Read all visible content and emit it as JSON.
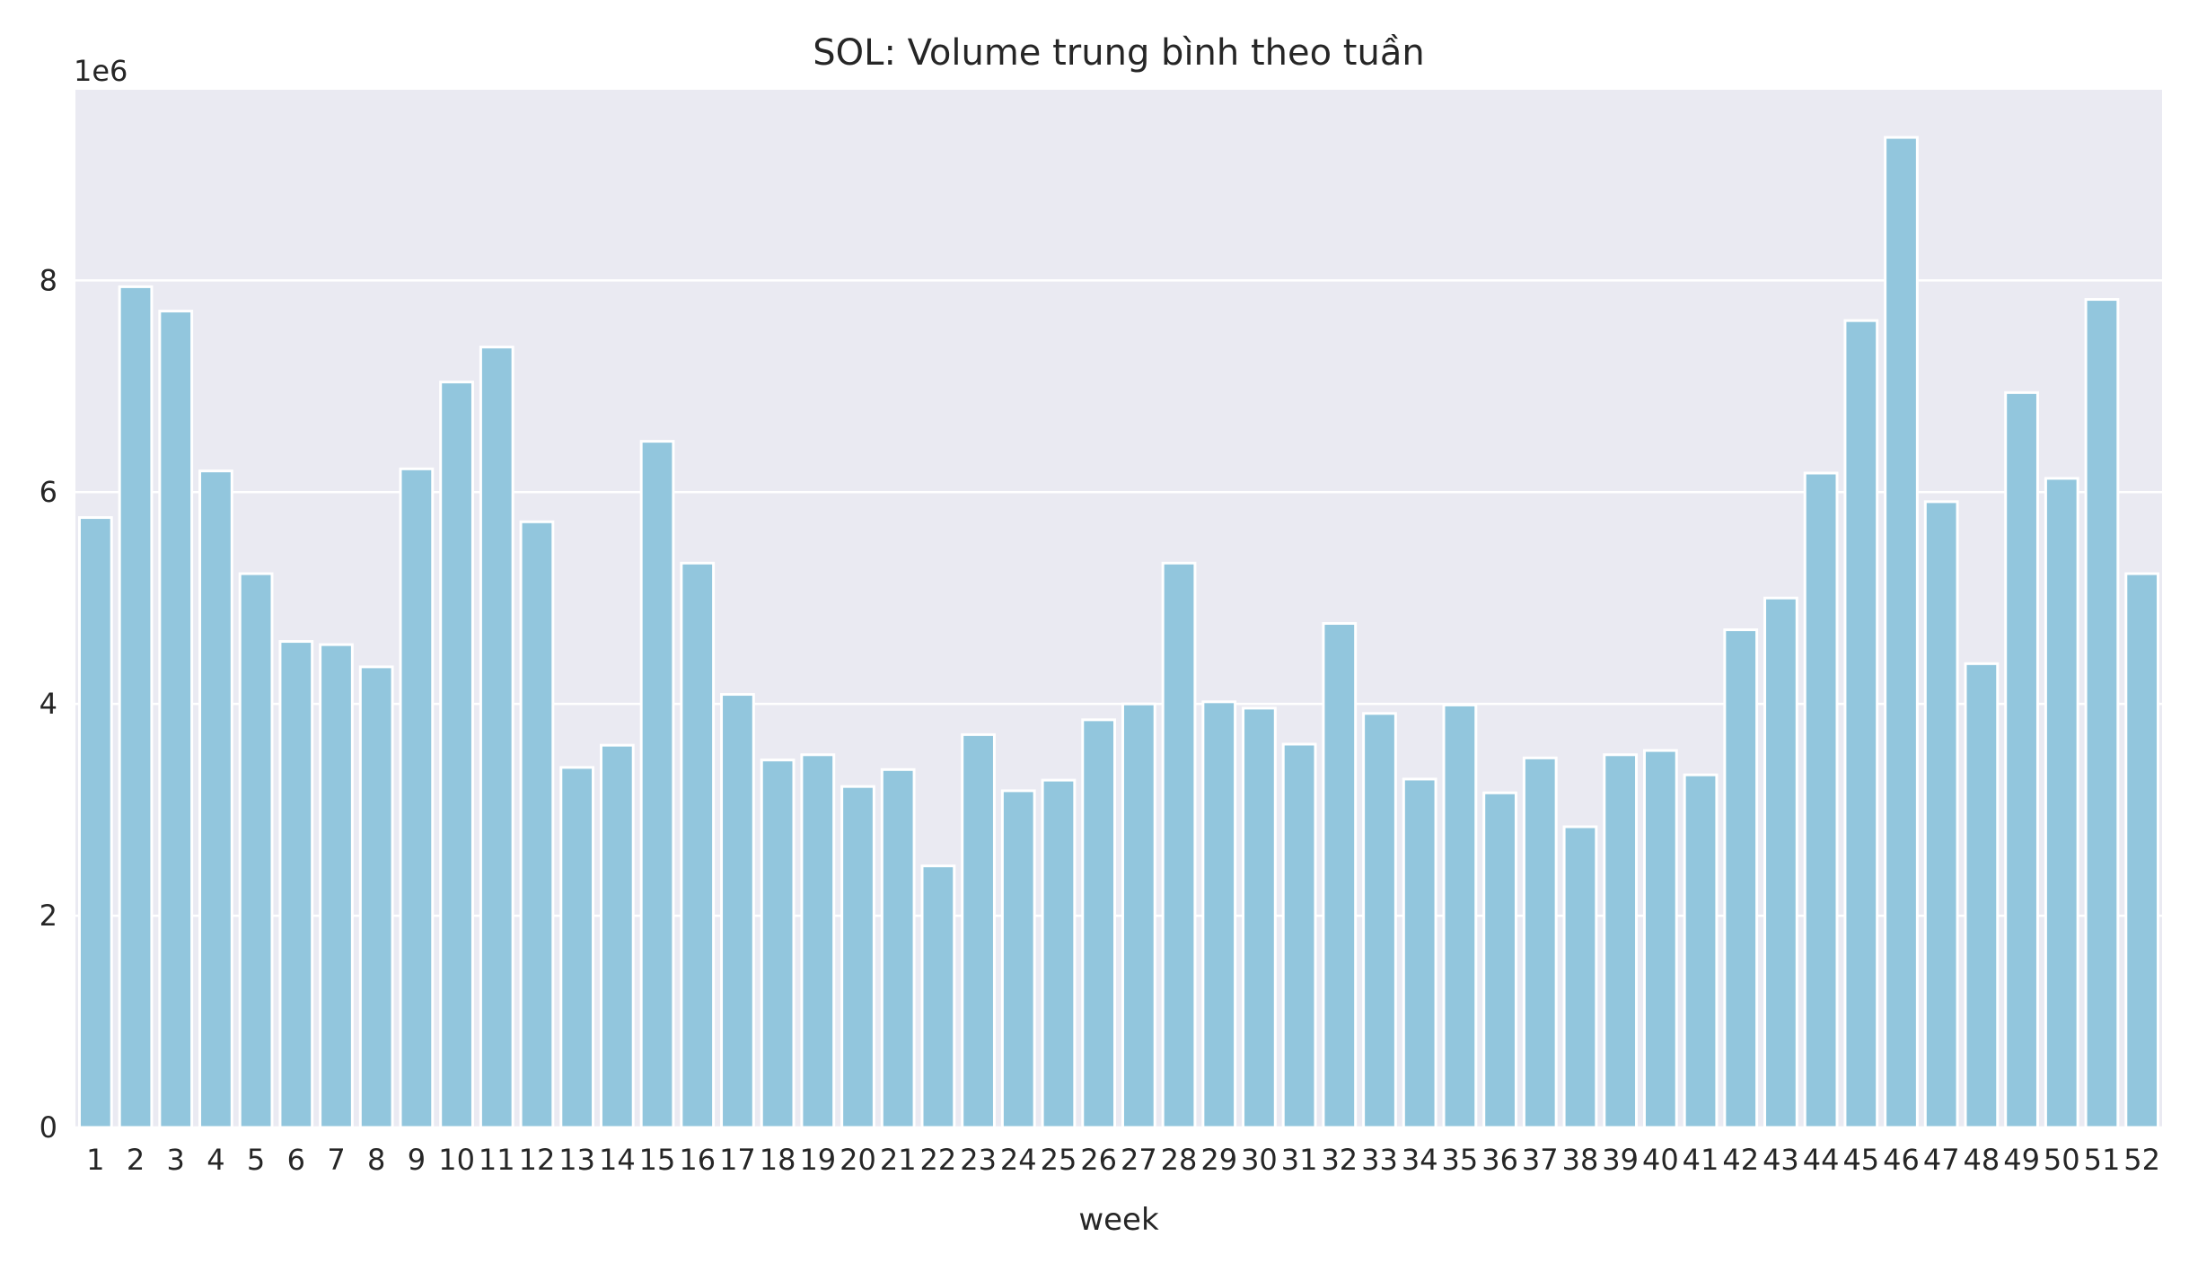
{
  "chart_data": {
    "type": "bar",
    "title": "SOL: Volume trung bình theo tuần",
    "xlabel": "week",
    "ylabel": "",
    "y_offset_label": "1e6",
    "ylim": [
      0,
      9.8
    ],
    "yticks": [
      0,
      2,
      4,
      6,
      8
    ],
    "grid": true,
    "bar_color": "#92c6dd",
    "background_color": "#eaeaf2",
    "categories": [
      "1",
      "2",
      "3",
      "4",
      "5",
      "6",
      "7",
      "8",
      "9",
      "10",
      "11",
      "12",
      "13",
      "14",
      "15",
      "16",
      "17",
      "18",
      "19",
      "20",
      "21",
      "22",
      "23",
      "24",
      "25",
      "26",
      "27",
      "28",
      "29",
      "30",
      "31",
      "32",
      "33",
      "34",
      "35",
      "36",
      "37",
      "38",
      "39",
      "40",
      "41",
      "42",
      "43",
      "44",
      "45",
      "46",
      "47",
      "48",
      "49",
      "50",
      "51",
      "52"
    ],
    "values": [
      5.76,
      7.94,
      7.71,
      6.2,
      5.23,
      4.59,
      4.56,
      4.35,
      6.22,
      7.04,
      7.37,
      5.72,
      3.4,
      3.61,
      6.48,
      5.33,
      4.09,
      3.47,
      3.52,
      3.22,
      3.38,
      2.47,
      3.71,
      3.18,
      3.28,
      3.85,
      4.0,
      5.33,
      4.02,
      3.96,
      3.62,
      4.76,
      3.91,
      3.29,
      3.99,
      3.16,
      3.49,
      2.84,
      3.52,
      3.56,
      3.33,
      4.7,
      5.0,
      6.18,
      7.62,
      9.35,
      5.91,
      4.38,
      6.94,
      6.13,
      7.82,
      5.23
    ]
  }
}
